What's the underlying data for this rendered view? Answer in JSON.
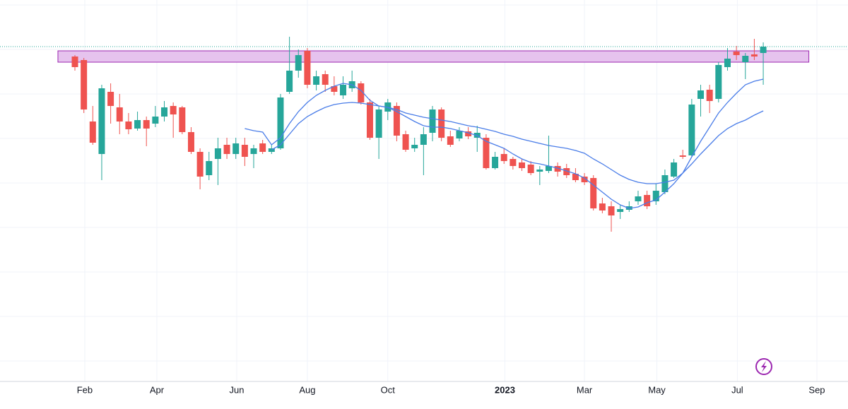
{
  "chart_data": {
    "type": "candlestick",
    "xlim": [
      -8.38,
      86.48
    ],
    "ylim": [
      60,
      600
    ],
    "xticks": [
      {
        "value": 1.1,
        "label": "Feb"
      },
      {
        "value": 9.17,
        "label": "Apr"
      },
      {
        "value": 18.1,
        "label": "Jun"
      },
      {
        "value": 26.0,
        "label": "Aug"
      },
      {
        "value": 35.0,
        "label": "Oct"
      },
      {
        "value": 48.1,
        "label": "2023",
        "bold": true
      },
      {
        "value": 57.0,
        "label": "Mar"
      },
      {
        "value": 65.1,
        "label": "May"
      },
      {
        "value": 74.1,
        "label": "Jul"
      },
      {
        "value": 83.0,
        "label": "Sep"
      }
    ],
    "ygrid": [
      593,
      530,
      467,
      404,
      341,
      278,
      215,
      152,
      89
    ],
    "grid": true,
    "up_color": "#26a69a",
    "down_color": "#ef5350",
    "open": [
      520,
      515,
      428,
      382,
      470,
      448,
      428,
      418,
      430,
      425,
      435,
      450,
      448,
      413,
      385,
      352,
      375,
      395,
      382,
      395,
      382,
      397,
      385,
      390,
      470,
      500,
      528,
      480,
      495,
      478,
      465,
      475,
      482,
      455,
      405,
      442,
      450,
      410,
      390,
      395,
      412,
      445,
      407,
      404,
      414,
      405,
      405,
      362,
      382,
      375,
      370,
      367,
      357,
      358,
      365,
      362,
      354,
      350,
      348,
      312,
      308,
      300,
      303,
      315,
      324,
      315,
      328,
      350,
      380,
      380,
      460,
      473,
      460,
      505,
      527,
      512,
      523,
      525
    ],
    "high": [
      522,
      518,
      450,
      480,
      482,
      467,
      440,
      442,
      435,
      450,
      457,
      455,
      450,
      420,
      390,
      385,
      405,
      405,
      405,
      405,
      395,
      402,
      395,
      467,
      548,
      530,
      532,
      500,
      500,
      492,
      492,
      500,
      485,
      460,
      450,
      460,
      455,
      415,
      405,
      420,
      450,
      448,
      415,
      420,
      420,
      422,
      410,
      385,
      390,
      378,
      375,
      372,
      365,
      408,
      370,
      368,
      362,
      355,
      352,
      320,
      315,
      310,
      315,
      330,
      330,
      340,
      360,
      375,
      388,
      460,
      480,
      480,
      512,
      532,
      535,
      525,
      545,
      540
    ],
    "low": [
      500,
      440,
      395,
      345,
      425,
      410,
      410,
      415,
      393,
      420,
      428,
      405,
      410,
      382,
      332,
      345,
      338,
      375,
      375,
      365,
      362,
      382,
      382,
      388,
      467,
      490,
      475,
      472,
      470,
      465,
      460,
      470,
      452,
      402,
      375,
      430,
      400,
      385,
      385,
      352,
      400,
      400,
      392,
      400,
      403,
      385,
      360,
      360,
      368,
      360,
      358,
      352,
      338,
      355,
      350,
      348,
      342,
      338,
      302,
      298,
      272,
      290,
      300,
      310,
      304,
      310,
      325,
      348,
      375,
      378,
      435,
      440,
      455,
      500,
      515,
      488,
      515,
      480
    ],
    "close": [
      505,
      445,
      398,
      475,
      450,
      428,
      417,
      430,
      418,
      435,
      448,
      438,
      413,
      385,
      350,
      372,
      390,
      382,
      397,
      378,
      390,
      385,
      390,
      462,
      500,
      522,
      480,
      492,
      480,
      470,
      480,
      485,
      455,
      405,
      445,
      455,
      408,
      388,
      395,
      410,
      445,
      405,
      395,
      415,
      407,
      412,
      362,
      378,
      372,
      365,
      362,
      355,
      360,
      365,
      357,
      352,
      345,
      342,
      305,
      302,
      295,
      304,
      308,
      322,
      308,
      330,
      352,
      370,
      378,
      452,
      472,
      457,
      508,
      517,
      522,
      521,
      520,
      534
    ],
    "lines": [
      {
        "color": "#4a7de8",
        "values": [
          null,
          null,
          null,
          null,
          null,
          null,
          null,
          null,
          null,
          null,
          null,
          null,
          null,
          null,
          null,
          null,
          null,
          null,
          null,
          418,
          415,
          413,
          395,
          405,
          425,
          442,
          455,
          465,
          472,
          478,
          482,
          480,
          472,
          458,
          450,
          448,
          442,
          435,
          428,
          422,
          420,
          420,
          418,
          415,
          412,
          408,
          400,
          395,
          390,
          382,
          375,
          370,
          368,
          365,
          362,
          358,
          354,
          348,
          338,
          328,
          318,
          310,
          305,
          307,
          313,
          317,
          328,
          340,
          355,
          378,
          400,
          420,
          440,
          455,
          468,
          480,
          485,
          488
        ]
      },
      {
        "color": "#4a7de8",
        "values": [
          null,
          null,
          null,
          null,
          null,
          null,
          null,
          null,
          null,
          null,
          null,
          null,
          null,
          null,
          null,
          null,
          null,
          null,
          null,
          null,
          null,
          null,
          388,
          395,
          410,
          425,
          435,
          442,
          448,
          452,
          454,
          455,
          454,
          452,
          450,
          448,
          445,
          440,
          437,
          434,
          432,
          430,
          428,
          425,
          422,
          420,
          417,
          414,
          410,
          407,
          403,
          400,
          397,
          394,
          392,
          390,
          387,
          383,
          375,
          368,
          360,
          352,
          346,
          342,
          340,
          340,
          342,
          345,
          355,
          368,
          382,
          395,
          408,
          418,
          425,
          430,
          437,
          443
        ]
      }
    ],
    "zone": {
      "x": [
        -1.9,
        82.1
      ],
      "y": [
        512,
        528
      ],
      "fill": "#e6c3ee",
      "stroke": "#9c27b0"
    },
    "price_line": {
      "value": 534,
      "color": "#26a69a"
    }
  }
}
